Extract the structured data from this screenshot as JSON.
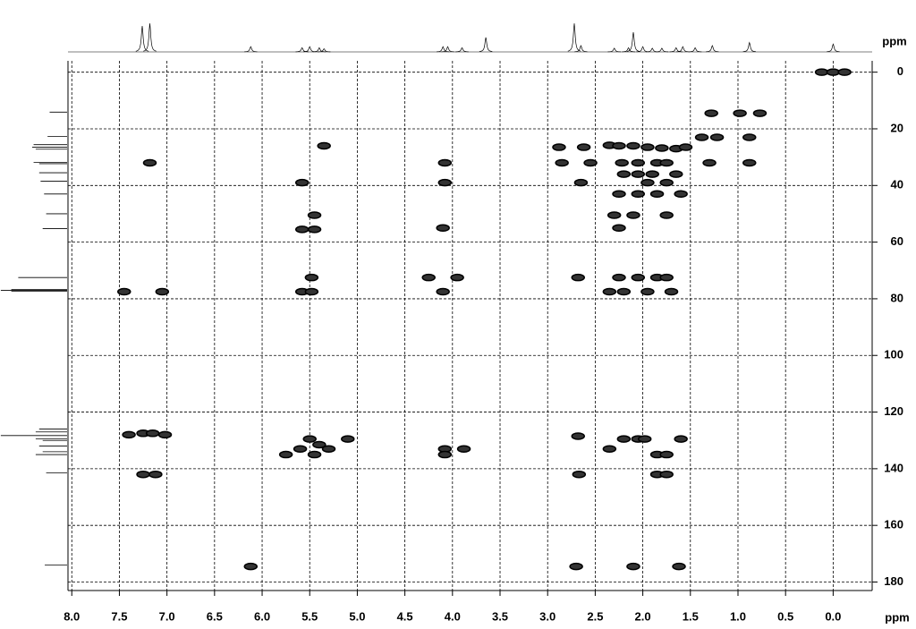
{
  "chart_data": {
    "type": "nmr2d",
    "x_label": "ppm",
    "y_label": "ppm",
    "xlim": [
      8.04,
      -0.41
    ],
    "ylim": [
      -4,
      183
    ],
    "xticks": [
      {
        "value": 8,
        "label": "8.0"
      },
      {
        "value": 7.5,
        "label": "7.5"
      },
      {
        "value": 7,
        "label": "7.0"
      },
      {
        "value": 6.5,
        "label": "6.5"
      },
      {
        "value": 6,
        "label": "6.0"
      },
      {
        "value": 5.5,
        "label": "5.5"
      },
      {
        "value": 5,
        "label": "5.0"
      },
      {
        "value": 4.5,
        "label": "4.5"
      },
      {
        "value": 4,
        "label": "4.0"
      },
      {
        "value": 3.5,
        "label": "3.5"
      },
      {
        "value": 3,
        "label": "3.0"
      },
      {
        "value": 2.5,
        "label": "2.5"
      },
      {
        "value": 2,
        "label": "2.0"
      },
      {
        "value": 1.5,
        "label": "1.5"
      },
      {
        "value": 1,
        "label": "1.0"
      },
      {
        "value": 0.5,
        "label": "0.5"
      },
      {
        "value": 0,
        "label": "0.0"
      }
    ],
    "yticks": [
      0,
      20,
      40,
      60,
      80,
      100,
      120,
      140,
      160,
      180
    ],
    "grid": true,
    "color": "#000000",
    "cross_peaks": {
      "x": [
        0.12,
        0.0,
        -0.12,
        1.28,
        0.98,
        0.77,
        1.38,
        1.22,
        0.88,
        7.18,
        5.35,
        2.88,
        2.62,
        2.35,
        2.25,
        2.1,
        1.95,
        1.8,
        1.65,
        1.55,
        2.85,
        2.55,
        2.22,
        2.05,
        1.85,
        1.75,
        1.3,
        0.88,
        4.08,
        2.2,
        2.05,
        1.9,
        1.65,
        5.58,
        4.08,
        2.65,
        1.95,
        1.75,
        2.25,
        2.05,
        1.85,
        1.6,
        5.45,
        2.3,
        2.1,
        1.75,
        5.58,
        5.45,
        4.1,
        2.25,
        5.48,
        4.25,
        3.95,
        2.68,
        2.25,
        2.05,
        1.85,
        1.75,
        7.45,
        7.05,
        5.58,
        5.48,
        4.1,
        2.35,
        2.2,
        1.95,
        1.7,
        7.4,
        7.25,
        7.15,
        7.02,
        5.5,
        5.1,
        5.4,
        5.6,
        5.3,
        5.75,
        5.45,
        4.08,
        3.88,
        4.08,
        2.68,
        2.35,
        2.2,
        2.05,
        1.98,
        1.6,
        1.85,
        1.75,
        7.25,
        7.12,
        2.67,
        1.85,
        1.75,
        6.12,
        2.7,
        2.1,
        1.62
      ],
      "values": [
        0,
        0,
        0,
        14.5,
        14.5,
        14.5,
        23,
        23,
        23,
        32,
        26,
        26.5,
        26.5,
        25.8,
        26,
        26,
        26.5,
        26.8,
        27,
        26.5,
        32,
        32,
        32,
        32,
        32,
        32,
        32,
        32,
        32,
        36,
        36,
        36,
        36,
        39,
        39,
        39,
        39,
        39,
        43,
        43,
        43,
        43,
        50.5,
        50.5,
        50.5,
        50.5,
        55.5,
        55.5,
        55,
        55,
        72.5,
        72.5,
        72.5,
        72.5,
        72.5,
        72.5,
        72.5,
        72.5,
        77.5,
        77.5,
        77.5,
        77.5,
        77.5,
        77.5,
        77.5,
        77.5,
        77.5,
        128,
        127.5,
        127.5,
        128,
        129.5,
        129.5,
        131.5,
        133,
        133,
        135,
        135,
        133,
        133,
        135,
        128.5,
        133,
        129.5,
        129.5,
        129.5,
        129.5,
        135,
        135,
        142,
        142,
        142,
        142,
        142,
        174.5,
        174.5,
        174.5,
        174.5
      ]
    },
    "top_spectrum": {
      "x": [
        7.26,
        7.18,
        6.12,
        5.58,
        5.5,
        5.4,
        5.35,
        4.1,
        4.05,
        3.9,
        3.65,
        2.72,
        2.65,
        2.3,
        2.15,
        2.1,
        2.0,
        1.9,
        1.8,
        1.65,
        1.58,
        1.45,
        1.27,
        0.88,
        0.0
      ],
      "values": [
        50,
        55,
        10,
        8,
        10,
        8,
        6,
        10,
        10,
        8,
        28,
        55,
        12,
        7,
        8,
        38,
        10,
        7,
        7,
        8,
        10,
        8,
        12,
        18,
        15
      ]
    },
    "left_spectrum": {
      "x": [
        14.1,
        22.7,
        25.6,
        26.5,
        27.2,
        31.9,
        32.3,
        35.5,
        38.5,
        43,
        50,
        55.2,
        72.5,
        76.7,
        77,
        77.3,
        126,
        127,
        128.3,
        129.5,
        130,
        132,
        134,
        135,
        141.5,
        174
      ],
      "values": [
        25,
        28,
        48,
        50,
        45,
        48,
        40,
        40,
        38,
        33,
        30,
        35,
        70,
        80,
        95,
        80,
        40,
        45,
        95,
        45,
        35,
        40,
        35,
        45,
        30,
        32
      ]
    }
  }
}
